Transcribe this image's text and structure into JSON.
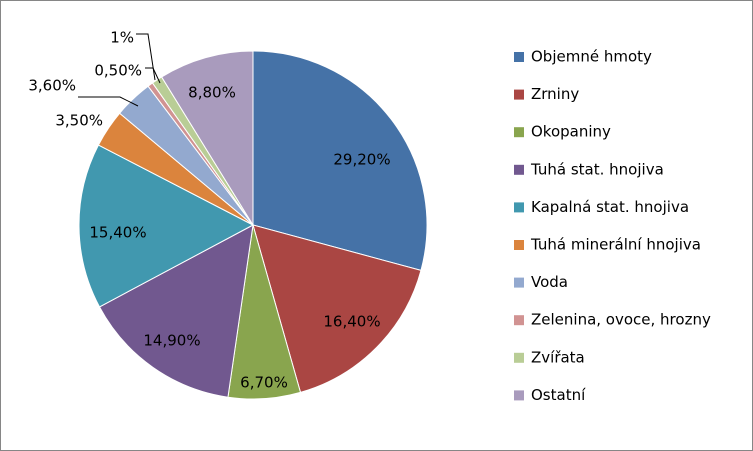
{
  "chart_data": {
    "type": "pie",
    "title": "",
    "legend_position": "right",
    "slices": [
      {
        "label": "Objemné hmoty",
        "value": 29.2,
        "display": "29,20%",
        "color": "#4572A7"
      },
      {
        "label": "Zrniny",
        "value": 16.4,
        "display": "16,40%",
        "color": "#AA4643"
      },
      {
        "label": "Okopaniny",
        "value": 6.7,
        "display": "6,70%",
        "color": "#89A54E"
      },
      {
        "label": "Tuhá stat. hnojiva",
        "value": 14.9,
        "display": "14,90%",
        "color": "#71588F"
      },
      {
        "label": "Kapalná stat. hnojiva",
        "value": 15.4,
        "display": "15,40%",
        "color": "#4198AF"
      },
      {
        "label": "Tuhá minerální hnojiva",
        "value": 3.5,
        "display": "3,50%",
        "color": "#DB843D"
      },
      {
        "label": "Voda",
        "value": 3.6,
        "display": "3,60%",
        "color": "#93A9CF"
      },
      {
        "label": "Zelenina, ovoce, hrozny",
        "value": 0.5,
        "display": "0,50%",
        "color": "#D19392"
      },
      {
        "label": "Zvířata",
        "value": 1,
        "display": "1%",
        "color": "#B9CD96"
      },
      {
        "label": "Ostatní",
        "value": 8.8,
        "display": "8,80%",
        "color": "#A99BBD"
      }
    ]
  }
}
